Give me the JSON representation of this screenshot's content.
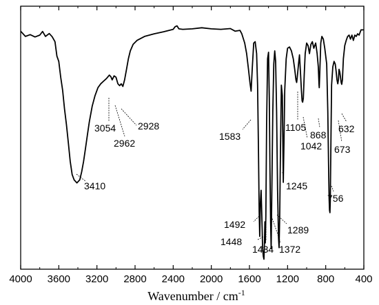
{
  "chart_data": {
    "type": "line",
    "xlabel": "Wavenumber / cm",
    "xlabel_superscript": "-1",
    "ylabel": "",
    "x_reversed": true,
    "xlim": [
      4000,
      400
    ],
    "ylim": [
      0,
      100
    ],
    "x_ticks": [
      4000,
      3600,
      3200,
      2800,
      2400,
      2000,
      1600,
      1200,
      800,
      400
    ],
    "x_tick_labels": [
      "4000",
      "3600",
      "3200",
      "2800",
      "2400",
      "2000",
      "1600",
      "1200",
      "800",
      "400"
    ],
    "grid": false,
    "legend": "none",
    "series": [
      {
        "points": [
          [
            4000,
            90.5
          ],
          [
            3950,
            88.5
          ],
          [
            3900,
            89.2
          ],
          [
            3850,
            88.3
          ],
          [
            3800,
            89.0
          ],
          [
            3770,
            90.4
          ],
          [
            3740,
            88.5
          ],
          [
            3700,
            89.6
          ],
          [
            3670,
            88.4
          ],
          [
            3640,
            86.5
          ],
          [
            3620,
            81
          ],
          [
            3600,
            79
          ],
          [
            3580,
            73
          ],
          [
            3560,
            68
          ],
          [
            3540,
            61
          ],
          [
            3520,
            55
          ],
          [
            3500,
            48
          ],
          [
            3480,
            41
          ],
          [
            3460,
            36
          ],
          [
            3440,
            34
          ],
          [
            3410,
            32.8
          ],
          [
            3380,
            34
          ],
          [
            3360,
            37
          ],
          [
            3340,
            41
          ],
          [
            3320,
            46
          ],
          [
            3300,
            51
          ],
          [
            3280,
            56
          ],
          [
            3250,
            62
          ],
          [
            3220,
            66
          ],
          [
            3190,
            69
          ],
          [
            3160,
            70.5
          ],
          [
            3130,
            71.5
          ],
          [
            3100,
            72.5
          ],
          [
            3070,
            73.8
          ],
          [
            3054,
            73.2
          ],
          [
            3040,
            72
          ],
          [
            3020,
            73.5
          ],
          [
            3000,
            73
          ],
          [
            2980,
            70.5
          ],
          [
            2962,
            69.8
          ],
          [
            2945,
            70.5
          ],
          [
            2928,
            69.5
          ],
          [
            2910,
            72
          ],
          [
            2890,
            76
          ],
          [
            2870,
            80
          ],
          [
            2850,
            83
          ],
          [
            2820,
            85.5
          ],
          [
            2780,
            87
          ],
          [
            2700,
            88.5
          ],
          [
            2600,
            89.5
          ],
          [
            2500,
            90.3
          ],
          [
            2400,
            91.2
          ],
          [
            2380,
            92.2
          ],
          [
            2360,
            92.5
          ],
          [
            2340,
            91.4
          ],
          [
            2300,
            91.2
          ],
          [
            2200,
            91.4
          ],
          [
            2100,
            91.8
          ],
          [
            2000,
            91.4
          ],
          [
            1900,
            91.2
          ],
          [
            1800,
            91.5
          ],
          [
            1750,
            90.5
          ],
          [
            1700,
            90.8
          ],
          [
            1680,
            89.5
          ],
          [
            1650,
            86
          ],
          [
            1630,
            82
          ],
          [
            1610,
            76
          ],
          [
            1595,
            71
          ],
          [
            1583,
            67.7
          ],
          [
            1570,
            77
          ],
          [
            1555,
            86
          ],
          [
            1540,
            86.5
          ],
          [
            1525,
            82
          ],
          [
            1515,
            70
          ],
          [
            1505,
            45
          ],
          [
            1498,
            22
          ],
          [
            1492,
            12.5
          ],
          [
            1486,
            25
          ],
          [
            1478,
            30
          ],
          [
            1470,
            20
          ],
          [
            1462,
            8
          ],
          [
            1455,
            5
          ],
          [
            1448,
            3.8
          ],
          [
            1444,
            8
          ],
          [
            1438,
            18
          ],
          [
            1434,
            10
          ],
          [
            1428,
            20
          ],
          [
            1420,
            55
          ],
          [
            1410,
            80
          ],
          [
            1400,
            82.5
          ],
          [
            1392,
            65
          ],
          [
            1385,
            40
          ],
          [
            1378,
            18
          ],
          [
            1372,
            7.8
          ],
          [
            1365,
            30
          ],
          [
            1355,
            60
          ],
          [
            1345,
            78
          ],
          [
            1335,
            83
          ],
          [
            1325,
            79
          ],
          [
            1315,
            60
          ],
          [
            1305,
            30
          ],
          [
            1295,
            12
          ],
          [
            1289,
            8.2
          ],
          [
            1283,
            20
          ],
          [
            1275,
            45
          ],
          [
            1265,
            70
          ],
          [
            1255,
            66
          ],
          [
            1250,
            50
          ],
          [
            1245,
            33
          ],
          [
            1238,
            48
          ],
          [
            1230,
            68
          ],
          [
            1215,
            80
          ],
          [
            1200,
            84
          ],
          [
            1180,
            84.5
          ],
          [
            1160,
            83
          ],
          [
            1140,
            80
          ],
          [
            1125,
            76
          ],
          [
            1112,
            72
          ],
          [
            1105,
            71
          ],
          [
            1098,
            73
          ],
          [
            1085,
            78
          ],
          [
            1075,
            81.5
          ],
          [
            1065,
            75
          ],
          [
            1055,
            68
          ],
          [
            1048,
            64
          ],
          [
            1042,
            63.5
          ],
          [
            1035,
            65
          ],
          [
            1025,
            74
          ],
          [
            1015,
            82
          ],
          [
            1000,
            86
          ],
          [
            985,
            85
          ],
          [
            970,
            82
          ],
          [
            955,
            85.5
          ],
          [
            940,
            86.5
          ],
          [
            925,
            84
          ],
          [
            905,
            86
          ],
          [
            890,
            82
          ],
          [
            878,
            77
          ],
          [
            870,
            70
          ],
          [
            868,
            69
          ],
          [
            862,
            75
          ],
          [
            852,
            86
          ],
          [
            840,
            88.5
          ],
          [
            825,
            87.5
          ],
          [
            810,
            84
          ],
          [
            790,
            78
          ],
          [
            778,
            60
          ],
          [
            770,
            40
          ],
          [
            764,
            27
          ],
          [
            760,
            22.5
          ],
          [
            756,
            21.5
          ],
          [
            752,
            26
          ],
          [
            745,
            50
          ],
          [
            738,
            70
          ],
          [
            725,
            77
          ],
          [
            712,
            79
          ],
          [
            700,
            78
          ],
          [
            690,
            75
          ],
          [
            682,
            72
          ],
          [
            673,
            70.5
          ],
          [
            667,
            72
          ],
          [
            660,
            76
          ],
          [
            652,
            75
          ],
          [
            645,
            73
          ],
          [
            638,
            71
          ],
          [
            632,
            70.3
          ],
          [
            625,
            72
          ],
          [
            615,
            80
          ],
          [
            600,
            85
          ],
          [
            585,
            87
          ],
          [
            570,
            88.5
          ],
          [
            555,
            89
          ],
          [
            540,
            87.5
          ],
          [
            525,
            89
          ],
          [
            510,
            87
          ],
          [
            495,
            89
          ],
          [
            480,
            88.5
          ],
          [
            465,
            89.5
          ],
          [
            450,
            89
          ],
          [
            430,
            91
          ],
          [
            400,
            91
          ]
        ]
      }
    ],
    "annotations": [
      {
        "label": "3410",
        "x": 3410
      },
      {
        "label": "3054",
        "x": 3054
      },
      {
        "label": "2962",
        "x": 2962
      },
      {
        "label": "2928",
        "x": 2928
      },
      {
        "label": "1583",
        "x": 1583
      },
      {
        "label": "1492",
        "x": 1492
      },
      {
        "label": "1448",
        "x": 1448
      },
      {
        "label": "1434",
        "x": 1434
      },
      {
        "label": "1372",
        "x": 1372
      },
      {
        "label": "1289",
        "x": 1289
      },
      {
        "label": "1245",
        "x": 1245
      },
      {
        "label": "1105",
        "x": 1105
      },
      {
        "label": "1042",
        "x": 1042
      },
      {
        "label": "868",
        "x": 868
      },
      {
        "label": "756",
        "x": 756
      },
      {
        "label": "673",
        "x": 673
      },
      {
        "label": "632",
        "x": 632
      }
    ]
  }
}
